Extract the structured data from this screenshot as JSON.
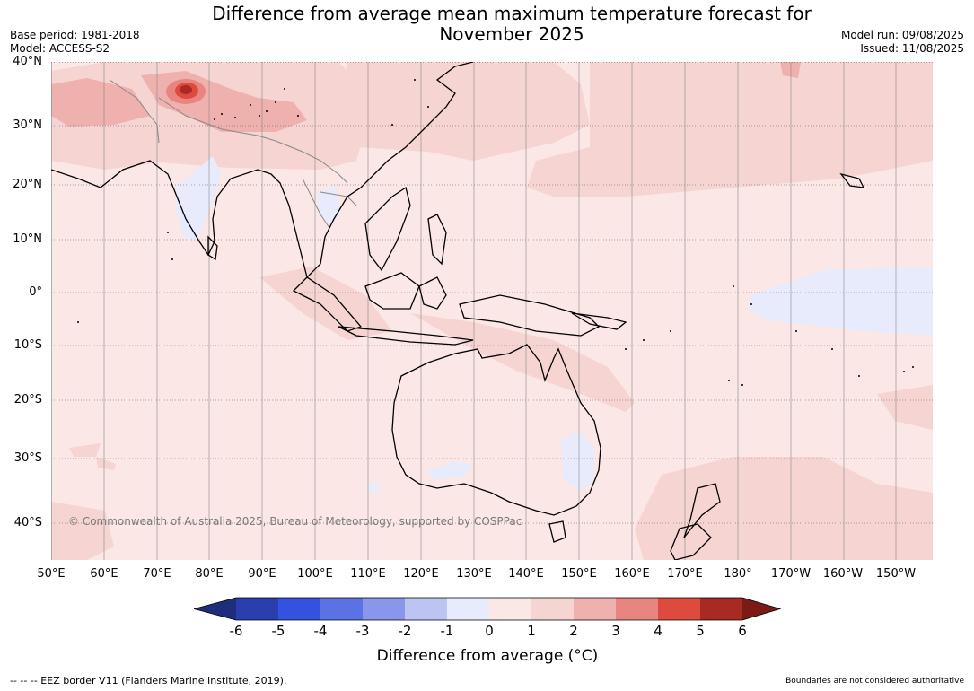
{
  "title_line1": "Difference from average mean maximum temperature forecast for",
  "title_line2": "November 2025",
  "base_period": "Base period: 1981-2018",
  "model": "Model: ACCESS-S2",
  "model_run": "Model run: 09/08/2025",
  "issued": "Issued: 11/08/2025",
  "lat_labels": [
    "40°N",
    "30°N",
    "20°N",
    "10°N",
    "0°",
    "10°S",
    "20°S",
    "30°S",
    "40°S"
  ],
  "lon_labels": [
    "50°E",
    "60°E",
    "70°E",
    "80°E",
    "90°E",
    "100°E",
    "110°E",
    "120°E",
    "130°E",
    "140°E",
    "150°E",
    "160°E",
    "170°E",
    "180°",
    "170°W",
    "160°W",
    "150°W"
  ],
  "copyright": "© Commonwealth of Australia 2025, Bureau of Meteorology, supported by COSPPac",
  "colorbar": {
    "ticks": [
      "-6",
      "-5",
      "-4",
      "-3",
      "-2",
      "-1",
      "0",
      "1",
      "2",
      "3",
      "4",
      "5",
      "6"
    ],
    "colors": [
      "#1f2e7a",
      "#2a3fad",
      "#3352e0",
      "#5a72e4",
      "#8897ec",
      "#bcc4f2",
      "#e8ebfb",
      "#fbe7e6",
      "#f5d4d2",
      "#eeb1ae",
      "#e88580",
      "#dc4b3e",
      "#a82a22",
      "#7a1c15"
    ],
    "label": "Difference from average (°C)"
  },
  "footer_left": "-- -- -- EEZ border V11 (Flanders Marine Institute, 2019).",
  "footer_right": "Boundaries are not considered authoritative"
}
